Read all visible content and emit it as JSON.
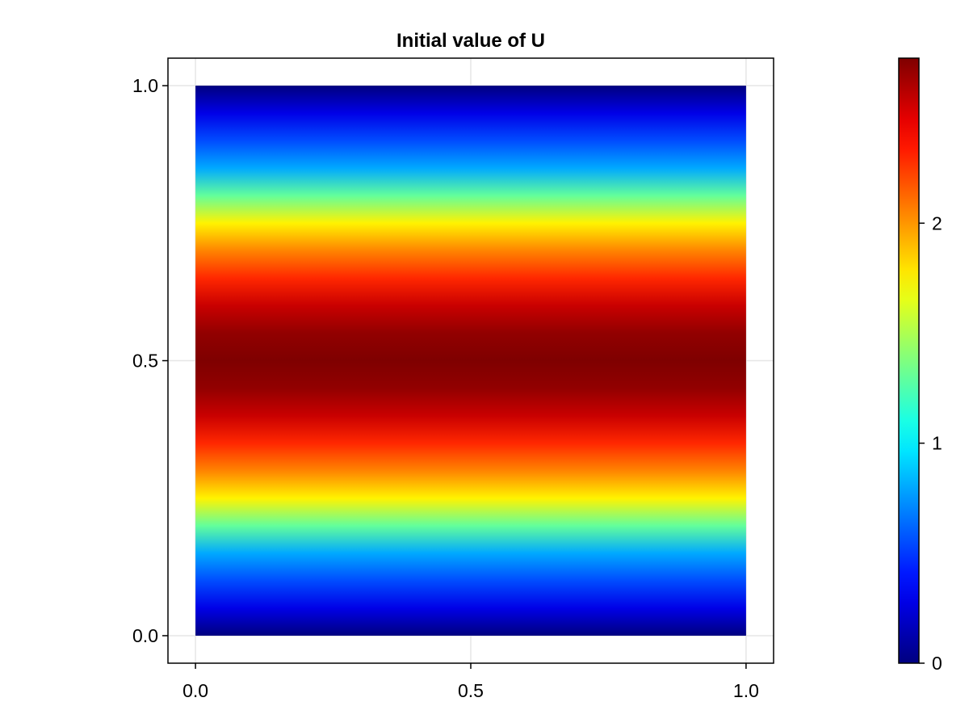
{
  "chart_data": {
    "type": "heatmap",
    "title": "Initial value of U",
    "xlabel": "",
    "ylabel": "",
    "x_domain": [
      0.0,
      1.0
    ],
    "y_domain": [
      0.0,
      1.0
    ],
    "xlim": [
      -0.05,
      1.05
    ],
    "ylim": [
      -0.05,
      1.05
    ],
    "x_ticks": [
      0.0,
      0.5,
      1.0
    ],
    "x_tick_labels": [
      "0.0",
      "0.5",
      "1.0"
    ],
    "y_ticks": [
      0.0,
      0.5,
      1.0
    ],
    "y_tick_labels": [
      "0.0",
      "0.5",
      "1.0"
    ],
    "grid": true,
    "colormap": "jet",
    "colormap_stops": [
      "#00007f",
      "#0000ff",
      "#007fff",
      "#00ffff",
      "#7fff7f",
      "#ffff00",
      "#ff7f00",
      "#ff0000",
      "#7f0000"
    ],
    "value_profile": {
      "varies_along": "y",
      "y": [
        0.0,
        0.05,
        0.1,
        0.15,
        0.2,
        0.25,
        0.3,
        0.35,
        0.4,
        0.45,
        0.5,
        0.55,
        0.6,
        0.65,
        0.7,
        0.75,
        0.8,
        0.85,
        0.9,
        0.95,
        1.0
      ],
      "values": [
        0.0,
        0.28,
        0.55,
        0.8,
        1.3,
        1.75,
        2.05,
        2.3,
        2.55,
        2.7,
        2.75,
        2.7,
        2.55,
        2.3,
        2.05,
        1.75,
        1.3,
        0.8,
        0.55,
        0.28,
        0.0
      ]
    },
    "colorbar": {
      "range": [
        0.0,
        2.75
      ],
      "ticks": [
        0,
        1,
        2
      ],
      "tick_labels": [
        "0",
        "1",
        "2"
      ],
      "placement": "right"
    }
  }
}
